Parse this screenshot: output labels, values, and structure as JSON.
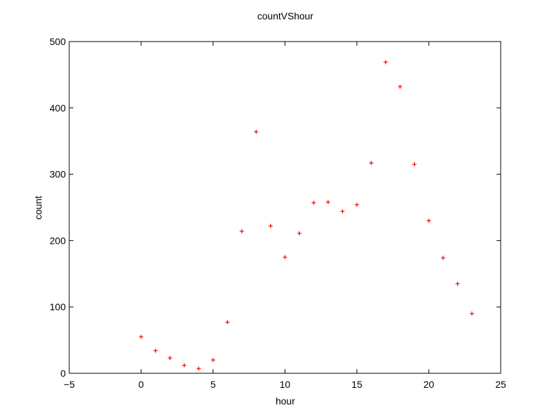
{
  "chart_data": {
    "type": "scatter",
    "title": "countVShour",
    "xlabel": "hour",
    "ylabel": "count",
    "xlim": [
      -5,
      25
    ],
    "ylim": [
      0,
      500
    ],
    "xticks": [
      -5,
      0,
      5,
      10,
      15,
      20,
      25
    ],
    "yticks": [
      0,
      100,
      200,
      300,
      400,
      500
    ],
    "xtick_labels": [
      "−5",
      "0",
      "5",
      "10",
      "15",
      "20",
      "25"
    ],
    "ytick_labels": [
      "0",
      "100",
      "200",
      "300",
      "400",
      "500"
    ],
    "grid": false,
    "marker": "+",
    "marker_color": "#ff0000",
    "series": [
      {
        "x": [
          0,
          1,
          2,
          3,
          4,
          5,
          6,
          7,
          8,
          9,
          10,
          11,
          12,
          13,
          14,
          15,
          16,
          17,
          18,
          19,
          20,
          21,
          22,
          23
        ],
        "y": [
          55,
          34,
          23,
          12,
          7,
          20,
          77,
          214,
          364,
          222,
          175,
          211,
          257,
          258,
          244,
          254,
          317,
          469,
          432,
          315,
          230,
          174,
          135,
          90
        ]
      }
    ]
  }
}
